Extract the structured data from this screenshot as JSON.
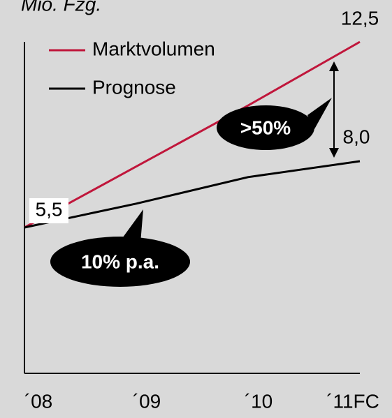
{
  "chart_data": {
    "type": "line",
    "title": "Mio. Fzg.",
    "categories": [
      "´08",
      "´09",
      "´10",
      "´11FC"
    ],
    "series": [
      {
        "name": "Marktvolumen",
        "color": "#c0163b",
        "values": [
          5.5,
          7.8,
          10.1,
          12.5
        ],
        "value_labels": [
          "5,5",
          null,
          null,
          "12,5"
        ]
      },
      {
        "name": "Prognose",
        "color": "#000000",
        "values": [
          5.5,
          6.4,
          7.4,
          8.0
        ],
        "value_labels": [
          null,
          null,
          null,
          "8,0"
        ]
      }
    ],
    "annotations": [
      ">50%",
      "10% p.a."
    ],
    "ylim": [
      0,
      12.5
    ],
    "legend": "top-left"
  }
}
